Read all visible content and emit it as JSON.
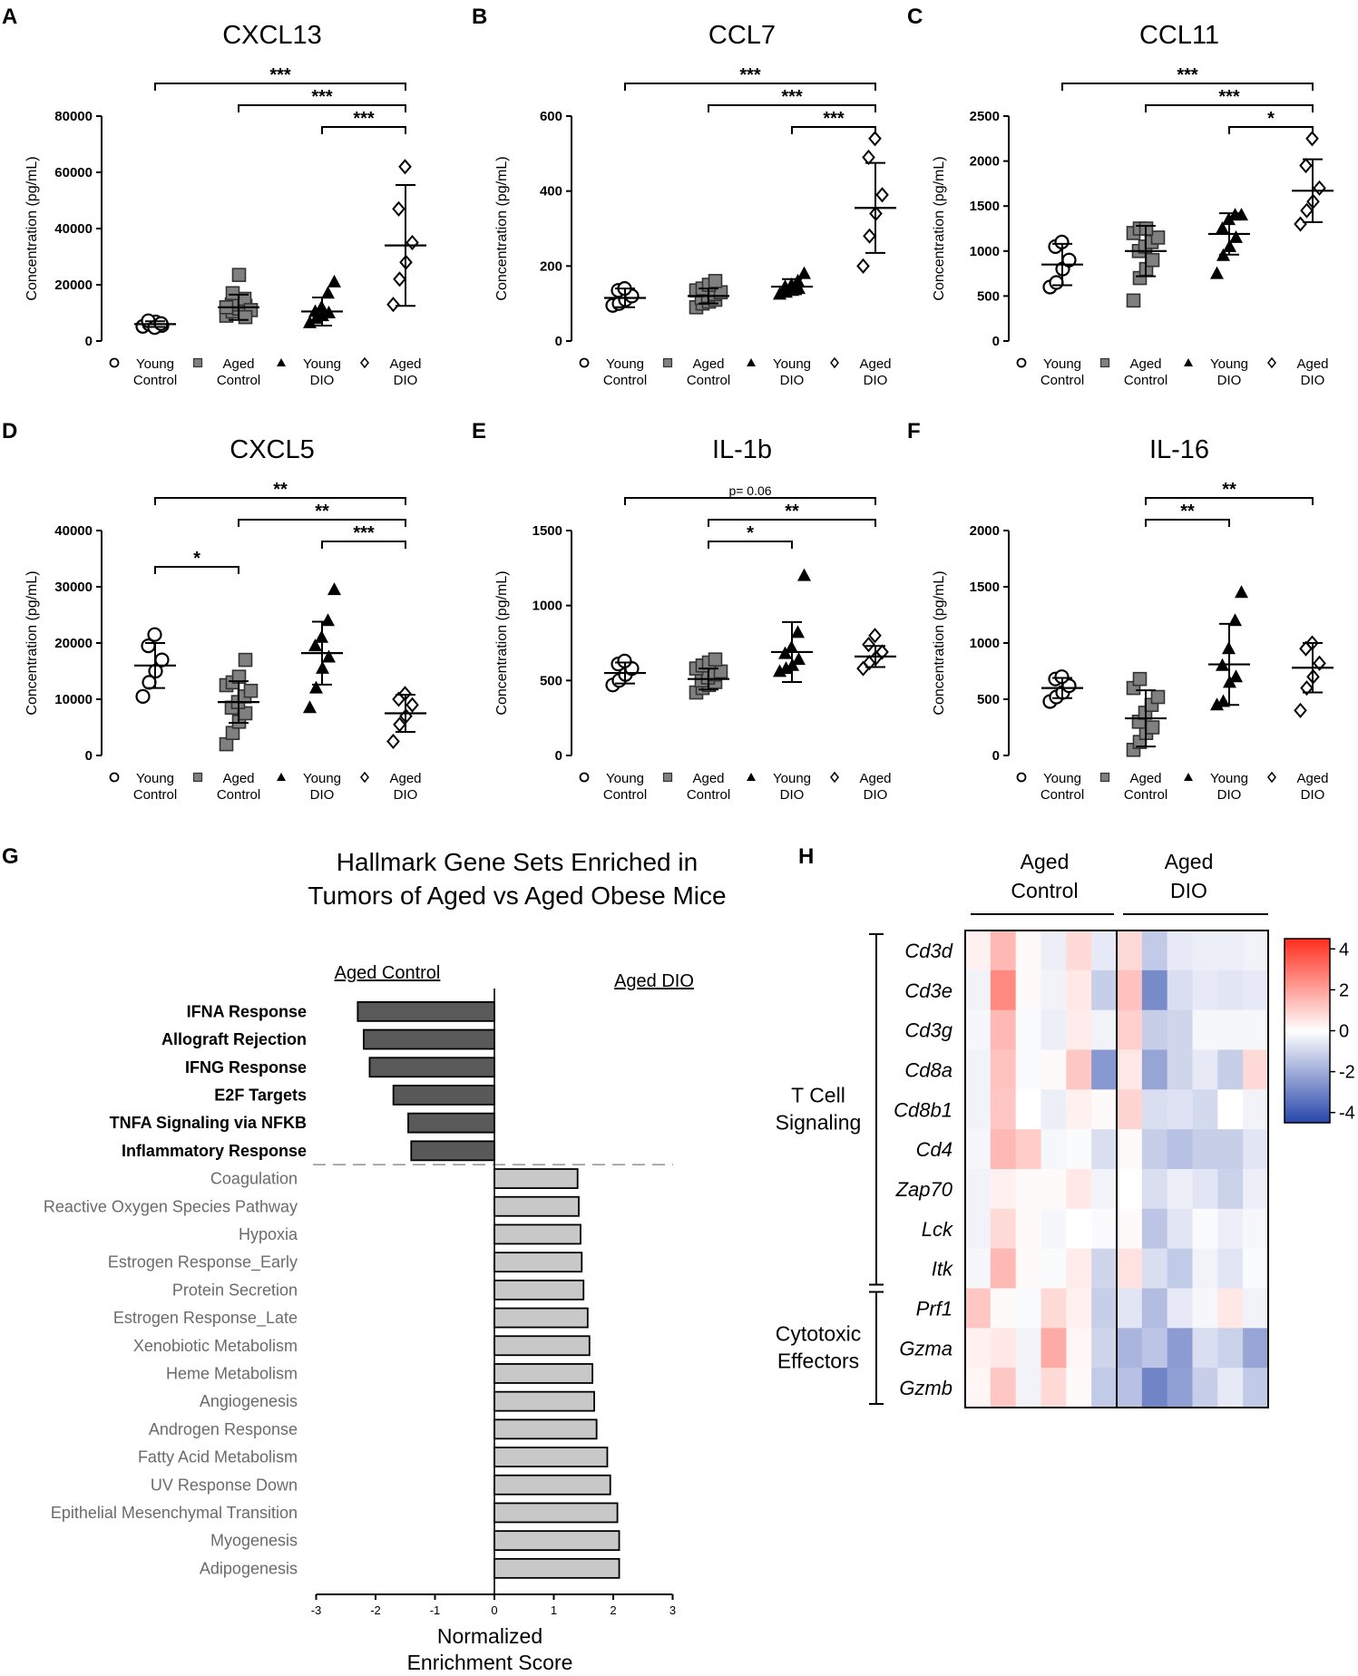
{
  "figure": {
    "group_names": [
      "Young Control",
      "Aged Control",
      "Young DIO",
      "Aged DIO"
    ],
    "group_lines": [
      [
        "Young",
        "Control"
      ],
      [
        "Aged",
        "Control"
      ],
      [
        "Young",
        "DIO"
      ],
      [
        "Aged",
        "DIO"
      ]
    ],
    "marker_styles": [
      "circle-open",
      "square-gray",
      "triangle-filled",
      "diamond-open"
    ]
  },
  "chart_data": [
    {
      "panel": "A",
      "type": "scatter",
      "title": "CXCL13",
      "ylabel": "Concentration (pg/mL)",
      "ylim": [
        0,
        80000
      ],
      "yticks": [
        0,
        20000,
        40000,
        60000,
        80000
      ],
      "groups": [
        "Young Control",
        "Aged Control",
        "Young DIO",
        "Aged DIO"
      ],
      "points": [
        [
          5200,
          6000,
          6800,
          5500,
          7200,
          4800,
          6200
        ],
        [
          9000,
          10500,
          11500,
          12500,
          13000,
          14000,
          15000,
          11000,
          12000,
          17000,
          23500,
          8500
        ],
        [
          6500,
          8000,
          9000,
          10000,
          10500,
          12000,
          17000,
          21000
        ],
        [
          13000,
          22000,
          28000,
          35000,
          47000,
          62000
        ]
      ],
      "means": [
        6000,
        12000,
        10500,
        34000
      ],
      "sd": [
        1000,
        4500,
        5000,
        21500
      ],
      "significance": [
        {
          "from": 0,
          "to": 3,
          "label": "***"
        },
        {
          "from": 1,
          "to": 3,
          "label": "***"
        },
        {
          "from": 2,
          "to": 3,
          "label": "***"
        }
      ]
    },
    {
      "panel": "B",
      "type": "scatter",
      "title": "CCL7",
      "ylabel": "Concentration (pg/mL)",
      "ylim": [
        0,
        600
      ],
      "yticks": [
        0,
        200,
        400,
        600
      ],
      "groups": [
        "Young Control",
        "Aged Control",
        "Young DIO",
        "Aged DIO"
      ],
      "points": [
        [
          95,
          100,
          110,
          120,
          135,
          140
        ],
        [
          90,
          100,
          105,
          110,
          115,
          120,
          125,
          130,
          135,
          140,
          150,
          160
        ],
        [
          125,
          130,
          135,
          140,
          145,
          150,
          160,
          180
        ],
        [
          200,
          280,
          340,
          390,
          490,
          540
        ]
      ],
      "means": [
        115,
        120,
        145,
        355
      ],
      "sd": [
        25,
        20,
        20,
        120
      ],
      "significance": [
        {
          "from": 0,
          "to": 3,
          "label": "***"
        },
        {
          "from": 1,
          "to": 3,
          "label": "***"
        },
        {
          "from": 2,
          "to": 3,
          "label": "***"
        }
      ]
    },
    {
      "panel": "C",
      "type": "scatter",
      "title": "CCL11",
      "ylabel": "Concentration (pg/mL)",
      "ylim": [
        0,
        2500
      ],
      "yticks": [
        0,
        500,
        1000,
        1500,
        2000,
        2500
      ],
      "groups": [
        "Young Control",
        "Aged Control",
        "Young DIO",
        "Aged DIO"
      ],
      "points": [
        [
          600,
          650,
          800,
          900,
          1050,
          1100
        ],
        [
          450,
          700,
          800,
          900,
          1000,
          1050,
          1100,
          1150,
          1200,
          1250,
          1250
        ],
        [
          750,
          950,
          1050,
          1150,
          1250,
          1350,
          1400,
          1400
        ],
        [
          1300,
          1450,
          1550,
          1700,
          1950,
          2250
        ]
      ],
      "means": [
        850,
        1000,
        1190,
        1670
      ],
      "sd": [
        230,
        280,
        230,
        350
      ],
      "significance": [
        {
          "from": 0,
          "to": 3,
          "label": "***"
        },
        {
          "from": 1,
          "to": 3,
          "label": "***"
        },
        {
          "from": 2,
          "to": 3,
          "label": "*"
        }
      ]
    },
    {
      "panel": "D",
      "type": "scatter",
      "title": "CXCL5",
      "ylabel": "Concentration (pg/mL)",
      "ylim": [
        0,
        40000
      ],
      "yticks": [
        0,
        10000,
        20000,
        30000,
        40000
      ],
      "groups": [
        "Young Control",
        "Aged Control",
        "Young DIO",
        "Aged DIO"
      ],
      "points": [
        [
          10500,
          13000,
          15000,
          17000,
          19500,
          21500
        ],
        [
          2000,
          4000,
          6000,
          7500,
          8500,
          9500,
          10500,
          11500,
          12500,
          13000,
          14000,
          17000
        ],
        [
          8500,
          12000,
          15500,
          17500,
          19500,
          21000,
          24000,
          29500
        ],
        [
          2500,
          5500,
          7000,
          9000,
          10000,
          11000
        ]
      ],
      "means": [
        16000,
        9500,
        18200,
        7500
      ],
      "sd": [
        4000,
        3700,
        5600,
        3300
      ],
      "significance": [
        {
          "from": 0,
          "to": 3,
          "label": "**"
        },
        {
          "from": 1,
          "to": 3,
          "label": "**"
        },
        {
          "from": 2,
          "to": 3,
          "label": "***"
        },
        {
          "from": 0,
          "to": 1,
          "label": "*"
        }
      ]
    },
    {
      "panel": "E",
      "type": "scatter",
      "title": "IL-1b",
      "ylabel": "Concentration (pg/mL)",
      "ylim": [
        0,
        1500
      ],
      "yticks": [
        0,
        500,
        1000,
        1500
      ],
      "groups": [
        "Young Control",
        "Aged Control",
        "Young DIO",
        "Aged DIO"
      ],
      "points": [
        [
          470,
          500,
          540,
          580,
          610,
          630
        ],
        [
          420,
          450,
          470,
          490,
          500,
          520,
          540,
          560,
          580,
          600,
          620,
          640
        ],
        [
          560,
          580,
          600,
          640,
          680,
          720,
          820,
          1200
        ],
        [
          580,
          620,
          650,
          690,
          740,
          800
        ]
      ],
      "means": [
        550,
        510,
        690,
        660
      ],
      "sd": [
        70,
        70,
        200,
        70
      ],
      "significance": [
        {
          "from": 0,
          "to": 3,
          "label": "p= 0.06"
        },
        {
          "from": 1,
          "to": 3,
          "label": "**"
        },
        {
          "from": 1,
          "to": 2,
          "label": "*"
        }
      ]
    },
    {
      "panel": "F",
      "type": "scatter",
      "title": "IL-16",
      "ylabel": "Concentration (pg/mL)",
      "ylim": [
        0,
        2000
      ],
      "yticks": [
        0,
        500,
        1000,
        1500,
        2000
      ],
      "groups": [
        "Young Control",
        "Aged Control",
        "Young DIO",
        "Aged DIO"
      ],
      "points": [
        [
          480,
          520,
          560,
          620,
          680,
          700
        ],
        [
          50,
          120,
          200,
          250,
          300,
          380,
          450,
          520,
          600,
          680
        ],
        [
          450,
          480,
          650,
          700,
          800,
          950,
          1200,
          1450
        ],
        [
          400,
          600,
          700,
          820,
          950,
          1000
        ]
      ],
      "means": [
        600,
        330,
        810,
        780
      ],
      "sd": [
        90,
        250,
        360,
        220
      ],
      "significance": [
        {
          "from": 1,
          "to": 3,
          "label": "**"
        },
        {
          "from": 1,
          "to": 2,
          "label": "**"
        }
      ]
    },
    {
      "panel": "G",
      "type": "bar",
      "orientation": "horizontal",
      "title": "Hallmark Gene Sets Enriched in Tumors of Aged vs Aged Obese Mice",
      "title_lines": [
        "Hallmark Gene Sets Enriched in",
        "Tumors of Aged vs Aged Obese Mice"
      ],
      "xlabel": "Normalized Enrichment Score",
      "xlabel_lines": [
        "Normalized",
        "Enrichment Score"
      ],
      "xlim": [
        -3,
        3
      ],
      "xticks": [
        -3,
        -2,
        -1,
        0,
        1,
        2,
        3
      ],
      "left_header": "Aged Control",
      "right_header": "Aged DIO",
      "categories": [
        "IFNA Response",
        "Allograft Rejection",
        "IFNG Response",
        "E2F Targets",
        "TNFA Signaling via NFKB",
        "Inflammatory Response",
        "Coagulation",
        "Reactive Oxygen Species Pathway",
        "Hypoxia",
        "Estrogen Response_Early",
        "Protein Secretion",
        "Estrogen Response_Late",
        "Xenobiotic Metabolism",
        "Heme Metabolism",
        "Angiogenesis",
        "Androgen Response",
        "Fatty Acid Metabolism",
        "UV Response Down",
        "Epithelial Mesenchymal Transition",
        "Myogenesis",
        "Adipogenesis"
      ],
      "values": [
        -2.3,
        -2.2,
        -2.1,
        -1.7,
        -1.45,
        -1.4,
        1.4,
        1.42,
        1.45,
        1.47,
        1.5,
        1.57,
        1.6,
        1.65,
        1.68,
        1.72,
        1.9,
        1.95,
        2.07,
        2.1,
        2.1
      ]
    },
    {
      "panel": "H",
      "type": "heatmap",
      "col_groups": [
        "Aged Control",
        "Aged DIO"
      ],
      "col_group_lines": [
        [
          "Aged",
          "Control"
        ],
        [
          "Aged",
          "DIO"
        ]
      ],
      "row_groups": [
        {
          "label_lines": [
            "T Cell",
            "Signaling"
          ],
          "rows": 9
        },
        {
          "label_lines": [
            "Cytotoxic",
            "Effectors"
          ],
          "rows": 3
        }
      ],
      "rows": [
        "Cd3d",
        "Cd3e",
        "Cd3g",
        "Cd8a",
        "Cd8b1",
        "Cd4",
        "Zap70",
        "Lck",
        "Itk",
        "Prf1",
        "Gzma",
        "Gzmb"
      ],
      "colorbar_ticks": [
        4,
        2,
        0,
        -2,
        -4
      ],
      "range": [
        -4.5,
        4.5
      ],
      "values": [
        [
          0.3,
          1.5,
          0.1,
          -0.4,
          0.8,
          -0.5,
          0.8,
          -1.3,
          -0.5,
          -0.4,
          -0.4,
          -0.3
        ],
        [
          -0.3,
          2.5,
          0.1,
          -0.3,
          0.5,
          -1.2,
          1.3,
          -2.8,
          -0.8,
          -0.5,
          -0.6,
          -0.5
        ],
        [
          -0.2,
          1.5,
          -0.1,
          -0.4,
          0.4,
          -0.3,
          1.0,
          -1.2,
          -1.0,
          -0.2,
          -0.2,
          -0.2
        ],
        [
          -0.3,
          1.3,
          -0.1,
          0.1,
          1.2,
          -2.5,
          0.5,
          -2.2,
          -1.0,
          -0.5,
          -1.2,
          0.8
        ],
        [
          -0.3,
          1.2,
          0.0,
          -0.4,
          0.3,
          0.1,
          0.9,
          -0.8,
          -0.7,
          -0.9,
          0.0,
          -0.3
        ],
        [
          -0.2,
          1.5,
          1.1,
          -0.2,
          -0.1,
          -0.8,
          0.1,
          -1.2,
          -1.5,
          -1.2,
          -1.2,
          -0.6
        ],
        [
          -0.3,
          0.3,
          0.1,
          0.1,
          0.5,
          -0.3,
          0.0,
          -0.8,
          -0.4,
          -0.6,
          -1.1,
          -0.4
        ],
        [
          -0.3,
          0.8,
          0.1,
          -0.2,
          0.0,
          -0.1,
          0.1,
          -1.4,
          -0.6,
          -0.1,
          -0.4,
          -0.2
        ],
        [
          -0.2,
          1.5,
          0.1,
          -0.1,
          0.4,
          -1.0,
          0.6,
          -0.8,
          -1.3,
          -0.3,
          -0.6,
          -0.1
        ],
        [
          1.2,
          0.1,
          -0.1,
          0.8,
          0.3,
          -1.2,
          -0.6,
          -1.6,
          -0.5,
          -0.2,
          0.5,
          -0.3
        ],
        [
          0.3,
          0.5,
          -0.3,
          1.8,
          0.2,
          -1.0,
          -1.8,
          -1.4,
          -2.4,
          -0.8,
          -1.1,
          -2.2
        ],
        [
          0.2,
          1.2,
          -0.3,
          0.8,
          0.1,
          -1.3,
          -1.5,
          -3.0,
          -2.3,
          -1.2,
          -0.5,
          -1.3
        ]
      ]
    }
  ]
}
